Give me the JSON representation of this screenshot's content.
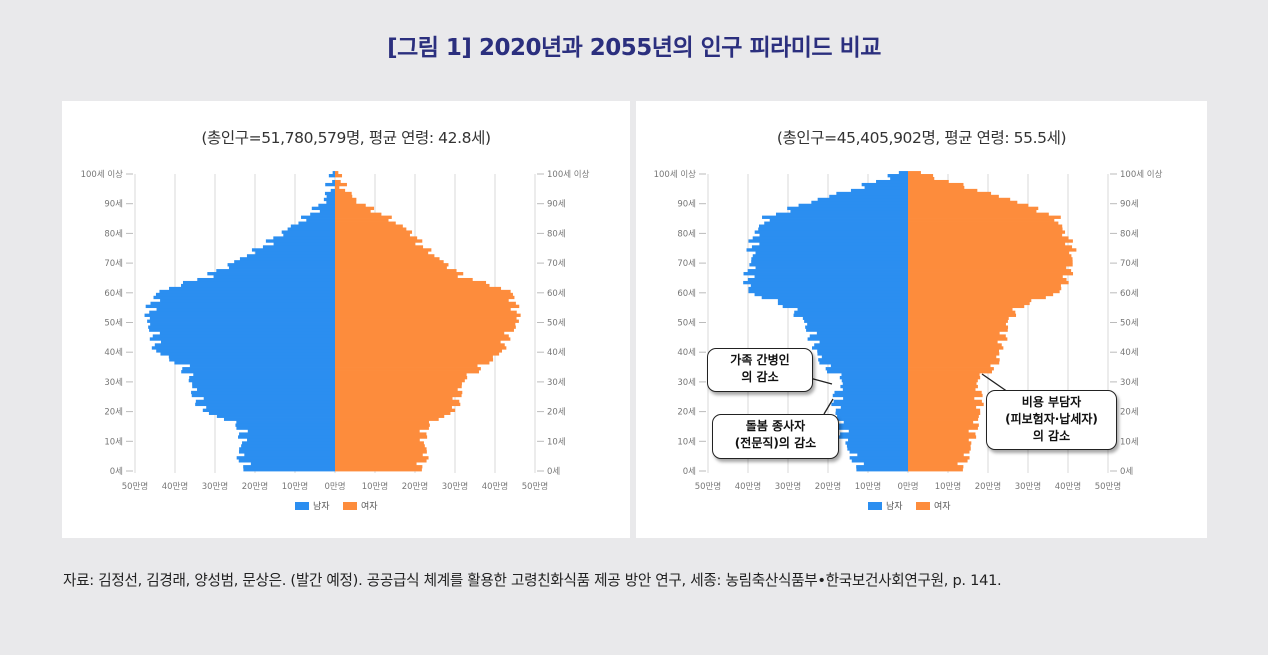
{
  "figure": {
    "title": "[그림 1] 2020년과 2055년의 인구 피라미드 비교",
    "source": "자료: 김정선, 김경래, 양성범, 문상은. (발간 예정). 공공급식 체계를 활용한 고령친화식품 제공 방안 연구, 세종: 농림축산식품부•한국보건사회연구원, p. 141."
  },
  "colors": {
    "male": "#2b8ef0",
    "female": "#fd8c3c",
    "grid": "#d9d9d9",
    "title": "#2b2f7e"
  },
  "chart_data": [
    {
      "type": "bar",
      "orientation": "horizontal-pyramid",
      "year": 2020,
      "subtitle": "(총인구=51,780,579명,  평균 연령: 42.8세)",
      "y_tick_labels": [
        "0세",
        "10세",
        "20세",
        "30세",
        "40세",
        "50세",
        "60세",
        "70세",
        "80세",
        "90세",
        "100세 이상"
      ],
      "x_tick_labels": [
        "50만명",
        "40만명",
        "30만명",
        "20만명",
        "10만명",
        "0만명",
        "10만명",
        "20만명",
        "30만명",
        "40만명",
        "50만명"
      ],
      "xlim_male": [
        0,
        50
      ],
      "xlim_female": [
        0,
        50
      ],
      "x_unit": "만명",
      "legend": [
        "남자",
        "여자"
      ],
      "legend_position": "bottom",
      "ages": [
        0,
        5,
        10,
        15,
        20,
        25,
        30,
        35,
        40,
        45,
        50,
        55,
        60,
        65,
        70,
        75,
        80,
        85,
        90,
        95,
        100
      ],
      "series": [
        {
          "name": "남자",
          "values": [
            22,
            24,
            23,
            24,
            33,
            35,
            36,
            38,
            45,
            45,
            47,
            46,
            44,
            32,
            25,
            18,
            13,
            7,
            3,
            1,
            0.3
          ]
        },
        {
          "name": "여자",
          "values": [
            21,
            23,
            22,
            23,
            30,
            31,
            32,
            37,
            42,
            43,
            46,
            45,
            44,
            32,
            27,
            22,
            19,
            13,
            6,
            2,
            0.6
          ]
        }
      ]
    },
    {
      "type": "bar",
      "orientation": "horizontal-pyramid",
      "year": 2055,
      "subtitle": "(총인구=45,405,902명,  평균 연령: 55.5세)",
      "y_tick_labels": [
        "0세",
        "10세",
        "20세",
        "30세",
        "40세",
        "50세",
        "60세",
        "70세",
        "80세",
        "90세",
        "100세 이상"
      ],
      "x_tick_labels": [
        "50만명",
        "40만명",
        "30만명",
        "20만명",
        "10만명",
        "0만명",
        "10만명",
        "20만명",
        "30만명",
        "40만명",
        "50만명"
      ],
      "xlim_male": [
        0,
        50
      ],
      "xlim_female": [
        0,
        50
      ],
      "x_unit": "만명",
      "legend": [
        "남자",
        "여자"
      ],
      "legend_position": "bottom",
      "ages": [
        0,
        5,
        10,
        15,
        20,
        25,
        30,
        35,
        40,
        45,
        50,
        55,
        60,
        65,
        70,
        75,
        80,
        85,
        90,
        95,
        100
      ],
      "series": [
        {
          "name": "남자",
          "values": [
            12,
            14,
            16,
            17,
            18,
            18,
            16,
            21,
            23,
            24,
            26,
            30,
            40,
            40,
            39,
            39,
            38,
            35,
            25,
            12,
            2
          ]
        },
        {
          "name": "여자",
          "values": [
            13,
            15,
            16,
            17,
            18,
            18,
            17,
            22,
            23,
            24,
            25,
            28,
            38,
            40,
            41,
            41,
            39,
            37,
            28,
            15,
            3
          ]
        }
      ],
      "annotations": [
        {
          "lines": [
            "가족 간병인",
            "의 감소"
          ]
        },
        {
          "lines": [
            "돌봄 종사자",
            "(전문직)의 감소"
          ]
        },
        {
          "lines": [
            "비용 부담자",
            "(피보험자·납세자)",
            "의 감소"
          ]
        }
      ]
    }
  ]
}
